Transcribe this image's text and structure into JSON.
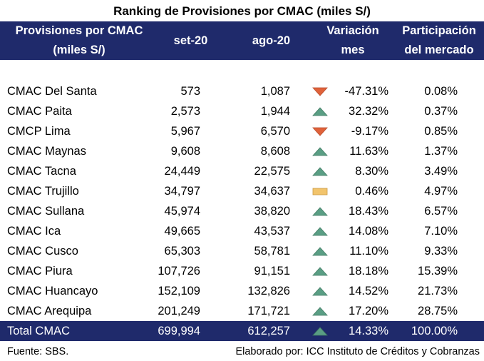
{
  "title": "Ranking de Provisiones por CMAC (miles S/)",
  "header": {
    "col_name_line1": "Provisiones por CMAC",
    "col_name_line2": "(miles S/)",
    "col_set": "set-20",
    "col_ago": "ago-20",
    "col_var_line1": "Variación",
    "col_var_line2": "mes",
    "col_part_line1": "Participación",
    "col_part_line2": "del mercado"
  },
  "rows": [
    {
      "name": "CMAC Del Santa",
      "set": "573",
      "ago": "1,087",
      "indicator": "down",
      "var": "-47.31%",
      "part": "0.08%"
    },
    {
      "name": "CMAC Paita",
      "set": "2,573",
      "ago": "1,944",
      "indicator": "up",
      "var": "32.32%",
      "part": "0.37%"
    },
    {
      "name": "CMCP Lima",
      "set": "5,967",
      "ago": "6,570",
      "indicator": "down",
      "var": "-9.17%",
      "part": "0.85%"
    },
    {
      "name": "CMAC Maynas",
      "set": "9,608",
      "ago": "8,608",
      "indicator": "up",
      "var": "11.63%",
      "part": "1.37%"
    },
    {
      "name": "CMAC Tacna",
      "set": "24,449",
      "ago": "22,575",
      "indicator": "up",
      "var": "8.30%",
      "part": "3.49%"
    },
    {
      "name": "CMAC Trujillo",
      "set": "34,797",
      "ago": "34,637",
      "indicator": "flat",
      "var": "0.46%",
      "part": "4.97%"
    },
    {
      "name": "CMAC Sullana",
      "set": "45,974",
      "ago": "38,820",
      "indicator": "up",
      "var": "18.43%",
      "part": "6.57%"
    },
    {
      "name": "CMAC Ica",
      "set": "49,665",
      "ago": "43,537",
      "indicator": "up",
      "var": "14.08%",
      "part": "7.10%"
    },
    {
      "name": "CMAC Cusco",
      "set": "65,303",
      "ago": "58,781",
      "indicator": "up",
      "var": "11.10%",
      "part": "9.33%"
    },
    {
      "name": "CMAC Piura",
      "set": "107,726",
      "ago": "91,151",
      "indicator": "up",
      "var": "18.18%",
      "part": "15.39%"
    },
    {
      "name": "CMAC Huancayo",
      "set": "152,109",
      "ago": "132,826",
      "indicator": "up",
      "var": "14.52%",
      "part": "21.73%"
    },
    {
      "name": "CMAC Arequipa",
      "set": "201,249",
      "ago": "171,721",
      "indicator": "up",
      "var": "17.20%",
      "part": "28.75%"
    }
  ],
  "total": {
    "name": "Total CMAC",
    "set": "699,994",
    "ago": "612,257",
    "indicator": "up",
    "var": "14.33%",
    "part": "100.00%"
  },
  "footer": {
    "source": "Fuente: SBS.",
    "credit": "Elaborado por: ICC Instituto de Créditos y Cobranzas"
  },
  "colors": {
    "header_bg": "#1f2a6b",
    "up": "#5a9e84",
    "down": "#e0623a",
    "flat": "#f2c46c"
  }
}
